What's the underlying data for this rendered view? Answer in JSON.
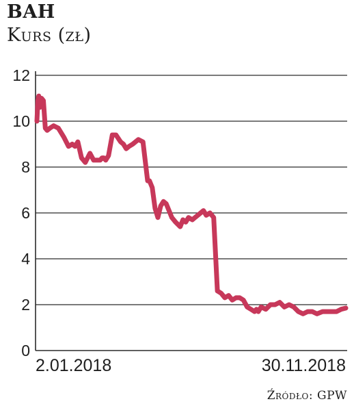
{
  "header": {
    "title": "BAH",
    "subtitle": "Kurs (zł)"
  },
  "footer": {
    "source": "Źródło: GPW"
  },
  "colors": {
    "line": "#c7385a",
    "grid": "#2a2a2a",
    "text": "#1e1e1e"
  },
  "chart_data": {
    "type": "line",
    "title": "BAH",
    "ylabel": "Kurs (zł)",
    "xlabel": "",
    "ylim": [
      0,
      12
    ],
    "yticks": [
      0,
      2,
      4,
      6,
      8,
      10,
      12
    ],
    "grid": true,
    "x_tick_labels": [
      "2.01.2018",
      "30.11.2018"
    ],
    "x_range": [
      "2018-01-02",
      "2018-11-30"
    ],
    "series": [
      {
        "name": "",
        "x": [
          "2018-01-02",
          "2018-01-03",
          "2018-01-04",
          "2018-01-05",
          "2018-01-07",
          "2018-01-09",
          "2018-01-11",
          "2018-01-13",
          "2018-01-16",
          "2018-01-20",
          "2018-01-25",
          "2018-01-31",
          "2018-02-05",
          "2018-02-09",
          "2018-02-12",
          "2018-02-15",
          "2018-02-19",
          "2018-02-23",
          "2018-02-28",
          "2018-03-04",
          "2018-03-08",
          "2018-03-11",
          "2018-03-13",
          "2018-03-15",
          "2018-03-17",
          "2018-03-20",
          "2018-03-24",
          "2018-03-28",
          "2018-04-02",
          "2018-04-05",
          "2018-04-08",
          "2018-04-11",
          "2018-04-15",
          "2018-04-21",
          "2018-04-26",
          "2018-05-01",
          "2018-05-03",
          "2018-05-06",
          "2018-05-09",
          "2018-05-12",
          "2018-05-15",
          "2018-05-18",
          "2018-05-21",
          "2018-05-24",
          "2018-05-27",
          "2018-05-31",
          "2018-06-05",
          "2018-06-08",
          "2018-06-11",
          "2018-06-14",
          "2018-06-18",
          "2018-06-21",
          "2018-06-24",
          "2018-06-27",
          "2018-06-30",
          "2018-07-03",
          "2018-07-07",
          "2018-07-11",
          "2018-07-15",
          "2018-07-19",
          "2018-07-23",
          "2018-07-27",
          "2018-07-31",
          "2018-08-04",
          "2018-08-08",
          "2018-08-12",
          "2018-08-16",
          "2018-08-20",
          "2018-08-24",
          "2018-08-26",
          "2018-08-28",
          "2018-08-31",
          "2018-09-05",
          "2018-09-10",
          "2018-09-15",
          "2018-09-20",
          "2018-09-25",
          "2018-09-30",
          "2018-10-05",
          "2018-10-10",
          "2018-10-15",
          "2018-10-20",
          "2018-10-25",
          "2018-10-30",
          "2018-11-05",
          "2018-11-10",
          "2018-11-15",
          "2018-11-20",
          "2018-11-25",
          "2018-11-30"
        ],
        "y": [
          10.0,
          10.9,
          11.1,
          10.6,
          11.0,
          10.9,
          9.7,
          9.6,
          9.7,
          9.8,
          9.7,
          9.3,
          8.9,
          9.0,
          8.9,
          9.1,
          8.4,
          8.2,
          8.6,
          8.3,
          8.3,
          8.3,
          8.4,
          8.4,
          8.3,
          8.5,
          9.4,
          9.4,
          9.1,
          9.0,
          8.8,
          8.9,
          9.0,
          9.2,
          9.1,
          7.4,
          7.4,
          7.1,
          6.2,
          5.8,
          6.3,
          6.5,
          6.4,
          6.1,
          5.8,
          5.6,
          5.4,
          5.7,
          5.6,
          5.8,
          5.7,
          5.8,
          5.9,
          6.0,
          6.1,
          5.9,
          6.0,
          5.8,
          2.6,
          2.5,
          2.3,
          2.4,
          2.2,
          2.3,
          2.3,
          2.2,
          1.9,
          1.8,
          1.7,
          1.8,
          1.7,
          1.9,
          1.8,
          2.0,
          2.0,
          2.1,
          1.9,
          2.0,
          1.9,
          1.7,
          1.6,
          1.7,
          1.7,
          1.6,
          1.7,
          1.7,
          1.7,
          1.7,
          1.8,
          1.85
        ]
      }
    ]
  }
}
